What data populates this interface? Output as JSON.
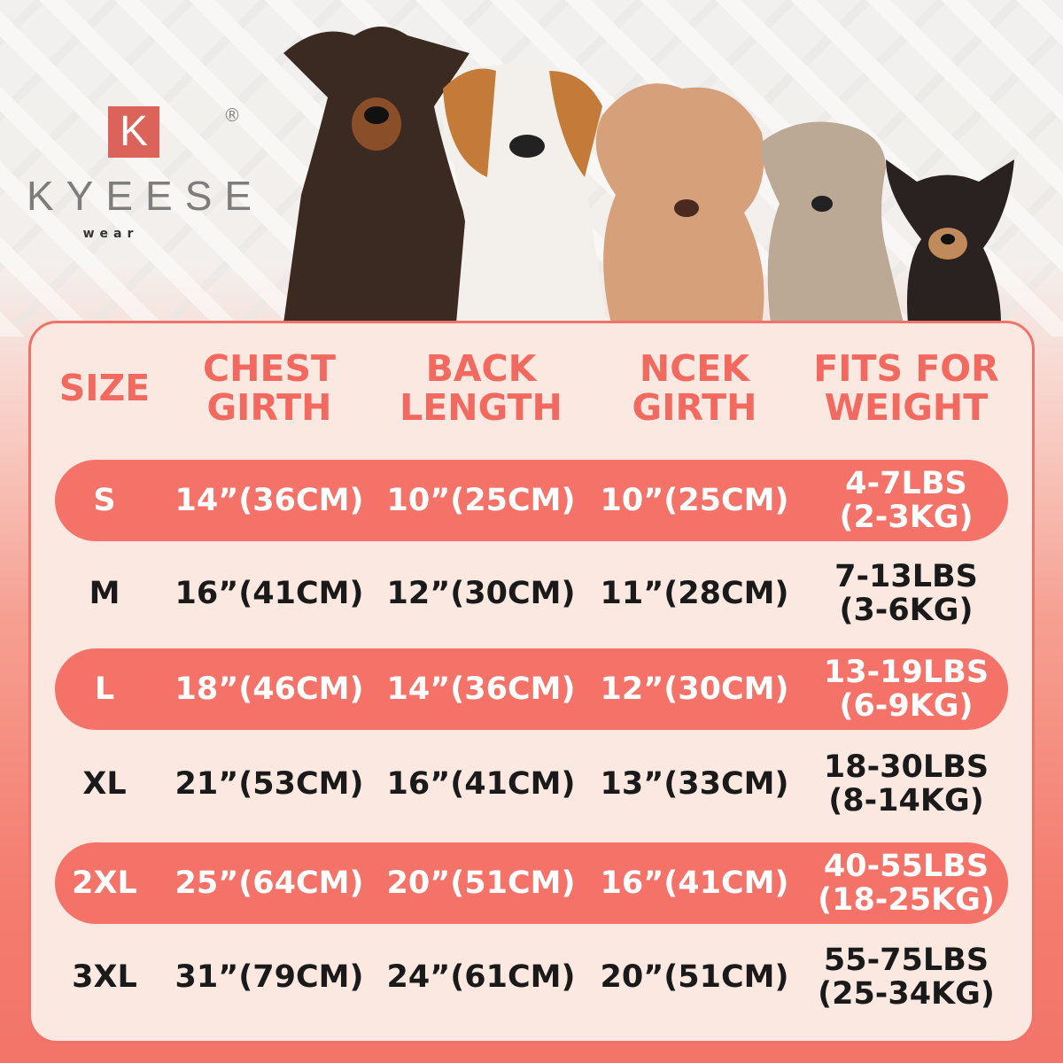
{
  "brand": {
    "logo_letter": "K",
    "name": "KYEESE",
    "sub": "wear",
    "registered": "®"
  },
  "colors": {
    "accent": "#f47268",
    "panel": "#fbe8e1",
    "text": "#1a1a1a"
  },
  "table": {
    "headers": [
      "SIZE",
      "CHEST\nGIRTH",
      "BACK\nLENGTH",
      "NCEK\nGIRTH",
      "FITS FOR\nWEIGHT"
    ],
    "rows": [
      [
        "S",
        "14”(36CM)",
        "10”(25CM)",
        "10”(25CM)",
        "4-7LBS\n(2-3KG)"
      ],
      [
        "M",
        "16”(41CM)",
        "12”(30CM)",
        "11”(28CM)",
        "7-13LBS\n(3-6KG)"
      ],
      [
        "L",
        "18”(46CM)",
        "14”(36CM)",
        "12”(30CM)",
        "13-19LBS\n(6-9KG)"
      ],
      [
        "XL",
        "21”(53CM)",
        "16”(41CM)",
        "13”(33CM)",
        "18-30LBS\n(8-14KG)"
      ],
      [
        "2XL",
        "25”(64CM)",
        "20”(51CM)",
        "16”(41CM)",
        "40-55LBS\n(18-25KG)"
      ],
      [
        "3XL",
        "31”(79CM)",
        "24”(61CM)",
        "20”(51CM)",
        "55-75LBS\n(25-34KG)"
      ]
    ]
  }
}
